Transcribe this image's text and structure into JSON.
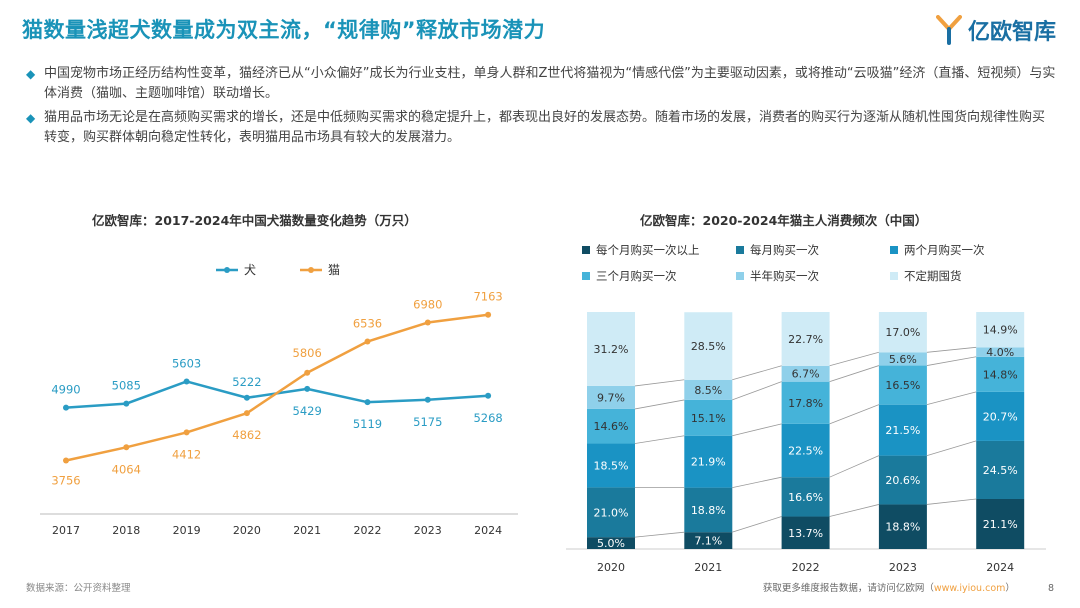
{
  "title": "猫数量浅超犬数量成为双主流，“规律购”释放市场潜力",
  "logo": {
    "text": "亿欧智库"
  },
  "bullets": [
    "中国宠物市场正经历结构性变革，猫经济已从“小众偏好”成长为行业支柱，单身人群和Z世代将猫视为“情感代偿”为主要驱动因素，或将推动“云吸猫”经济（直播、短视频）与实体消费（猫咖、主题咖啡馆）联动增长。",
    "猫用品市场无论是在高频购买需求的增长，还是中低频购买需求的稳定提升上，都表现出良好的发展态势。随着市场的发展，消费者的购买行为逐渐从随机性囤货向规律性购买转变，购买群体朝向稳定性转化，表明猫用品市场具有较大的发展潜力。"
  ],
  "footer": {
    "source": "数据来源：公开资料整理",
    "more": "获取更多维度报告数据，请访问亿欧网（",
    "link": "www.iyiou.com",
    "more_end": "）",
    "page": "8"
  },
  "colors": {
    "dog": "#2a9cc4",
    "cat": "#f0a040",
    "stack": [
      "#0f4c63",
      "#1a7a9c",
      "#1a93c4",
      "#45b3d9",
      "#8fd0ea",
      "#cfebf6"
    ]
  },
  "chart_data": [
    {
      "type": "line",
      "title": "亿欧智库：2017-2024年中国犬猫数量变化趋势（万只）",
      "x": [
        "2017",
        "2018",
        "2019",
        "2020",
        "2021",
        "2022",
        "2023",
        "2024"
      ],
      "series": [
        {
          "name": "犬",
          "values": [
            4990,
            5085,
            5603,
            5222,
            5429,
            5119,
            5175,
            5268
          ]
        },
        {
          "name": "猫",
          "values": [
            3756,
            4064,
            4412,
            4862,
            5806,
            6536,
            6980,
            7163
          ]
        }
      ],
      "legend": "top",
      "grid": false
    },
    {
      "type": "bar",
      "stacked": true,
      "title": "亿欧智库：2020-2024年猫主人消费频次（中国）",
      "categories": [
        "2020",
        "2021",
        "2022",
        "2023",
        "2024"
      ],
      "series": [
        {
          "name": "每个月购买一次以上",
          "values": [
            5.0,
            7.1,
            13.7,
            18.8,
            21.1
          ]
        },
        {
          "name": "每月购买一次",
          "values": [
            21.0,
            18.8,
            16.6,
            20.6,
            24.5
          ]
        },
        {
          "name": "两个月购买一次",
          "values": [
            18.5,
            21.9,
            22.5,
            21.5,
            20.7
          ]
        },
        {
          "name": "三个月购买一次",
          "values": [
            14.6,
            15.1,
            17.8,
            16.5,
            14.8
          ]
        },
        {
          "name": "半年购买一次",
          "values": [
            9.7,
            8.5,
            6.7,
            5.6,
            4.0
          ]
        },
        {
          "name": "不定期囤货",
          "values": [
            31.2,
            28.5,
            22.7,
            17.0,
            14.9
          ]
        }
      ],
      "unit": "%",
      "legend": "top",
      "grid": false
    }
  ]
}
